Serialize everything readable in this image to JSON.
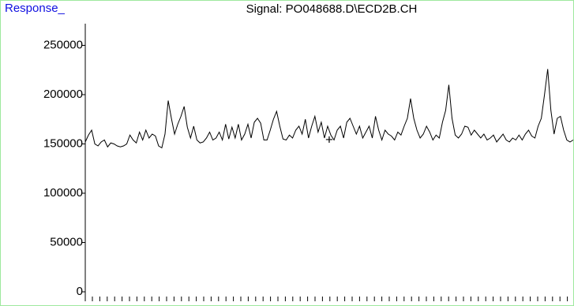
{
  "chart_data": {
    "type": "line",
    "title": "Signal: PO048688.D\\ECD2B.CH",
    "y_label": "Response_",
    "color": "#000000",
    "ylim": [
      0,
      272000
    ],
    "yticks": [
      0,
      50000,
      100000,
      150000,
      200000,
      250000
    ],
    "values": [
      152000,
      159000,
      164000,
      150000,
      148000,
      152000,
      154000,
      147000,
      151000,
      150000,
      148000,
      147000,
      148000,
      150000,
      159000,
      154000,
      151000,
      162000,
      154000,
      164000,
      156000,
      160000,
      158000,
      148000,
      146000,
      160000,
      194000,
      176000,
      160000,
      170000,
      178000,
      188000,
      167000,
      156000,
      168000,
      154000,
      151000,
      152000,
      156000,
      162000,
      154000,
      156000,
      162000,
      154000,
      170000,
      155000,
      167000,
      156000,
      170000,
      154000,
      160000,
      170000,
      156000,
      172000,
      176000,
      171000,
      154000,
      154000,
      164000,
      175000,
      183000,
      168000,
      155000,
      154000,
      159000,
      156000,
      164000,
      168000,
      160000,
      175000,
      156000,
      168000,
      178000,
      162000,
      172000,
      156000,
      168000,
      159000,
      154000,
      164000,
      168000,
      156000,
      172000,
      176000,
      168000,
      160000,
      168000,
      156000,
      162000,
      168000,
      156000,
      178000,
      164000,
      154000,
      164000,
      160000,
      158000,
      154000,
      162000,
      159000,
      168000,
      176000,
      196000,
      176000,
      164000,
      156000,
      160000,
      168000,
      162000,
      154000,
      159000,
      156000,
      172000,
      184000,
      210000,
      176000,
      159000,
      156000,
      160000,
      168000,
      167000,
      159000,
      164000,
      160000,
      156000,
      160000,
      154000,
      156000,
      159000,
      152000,
      156000,
      160000,
      154000,
      152000,
      156000,
      154000,
      159000,
      154000,
      160000,
      164000,
      158000,
      156000,
      168000,
      176000,
      200000,
      226000,
      184000,
      160000,
      176000,
      178000,
      164000,
      154000,
      152000,
      154000
    ]
  }
}
